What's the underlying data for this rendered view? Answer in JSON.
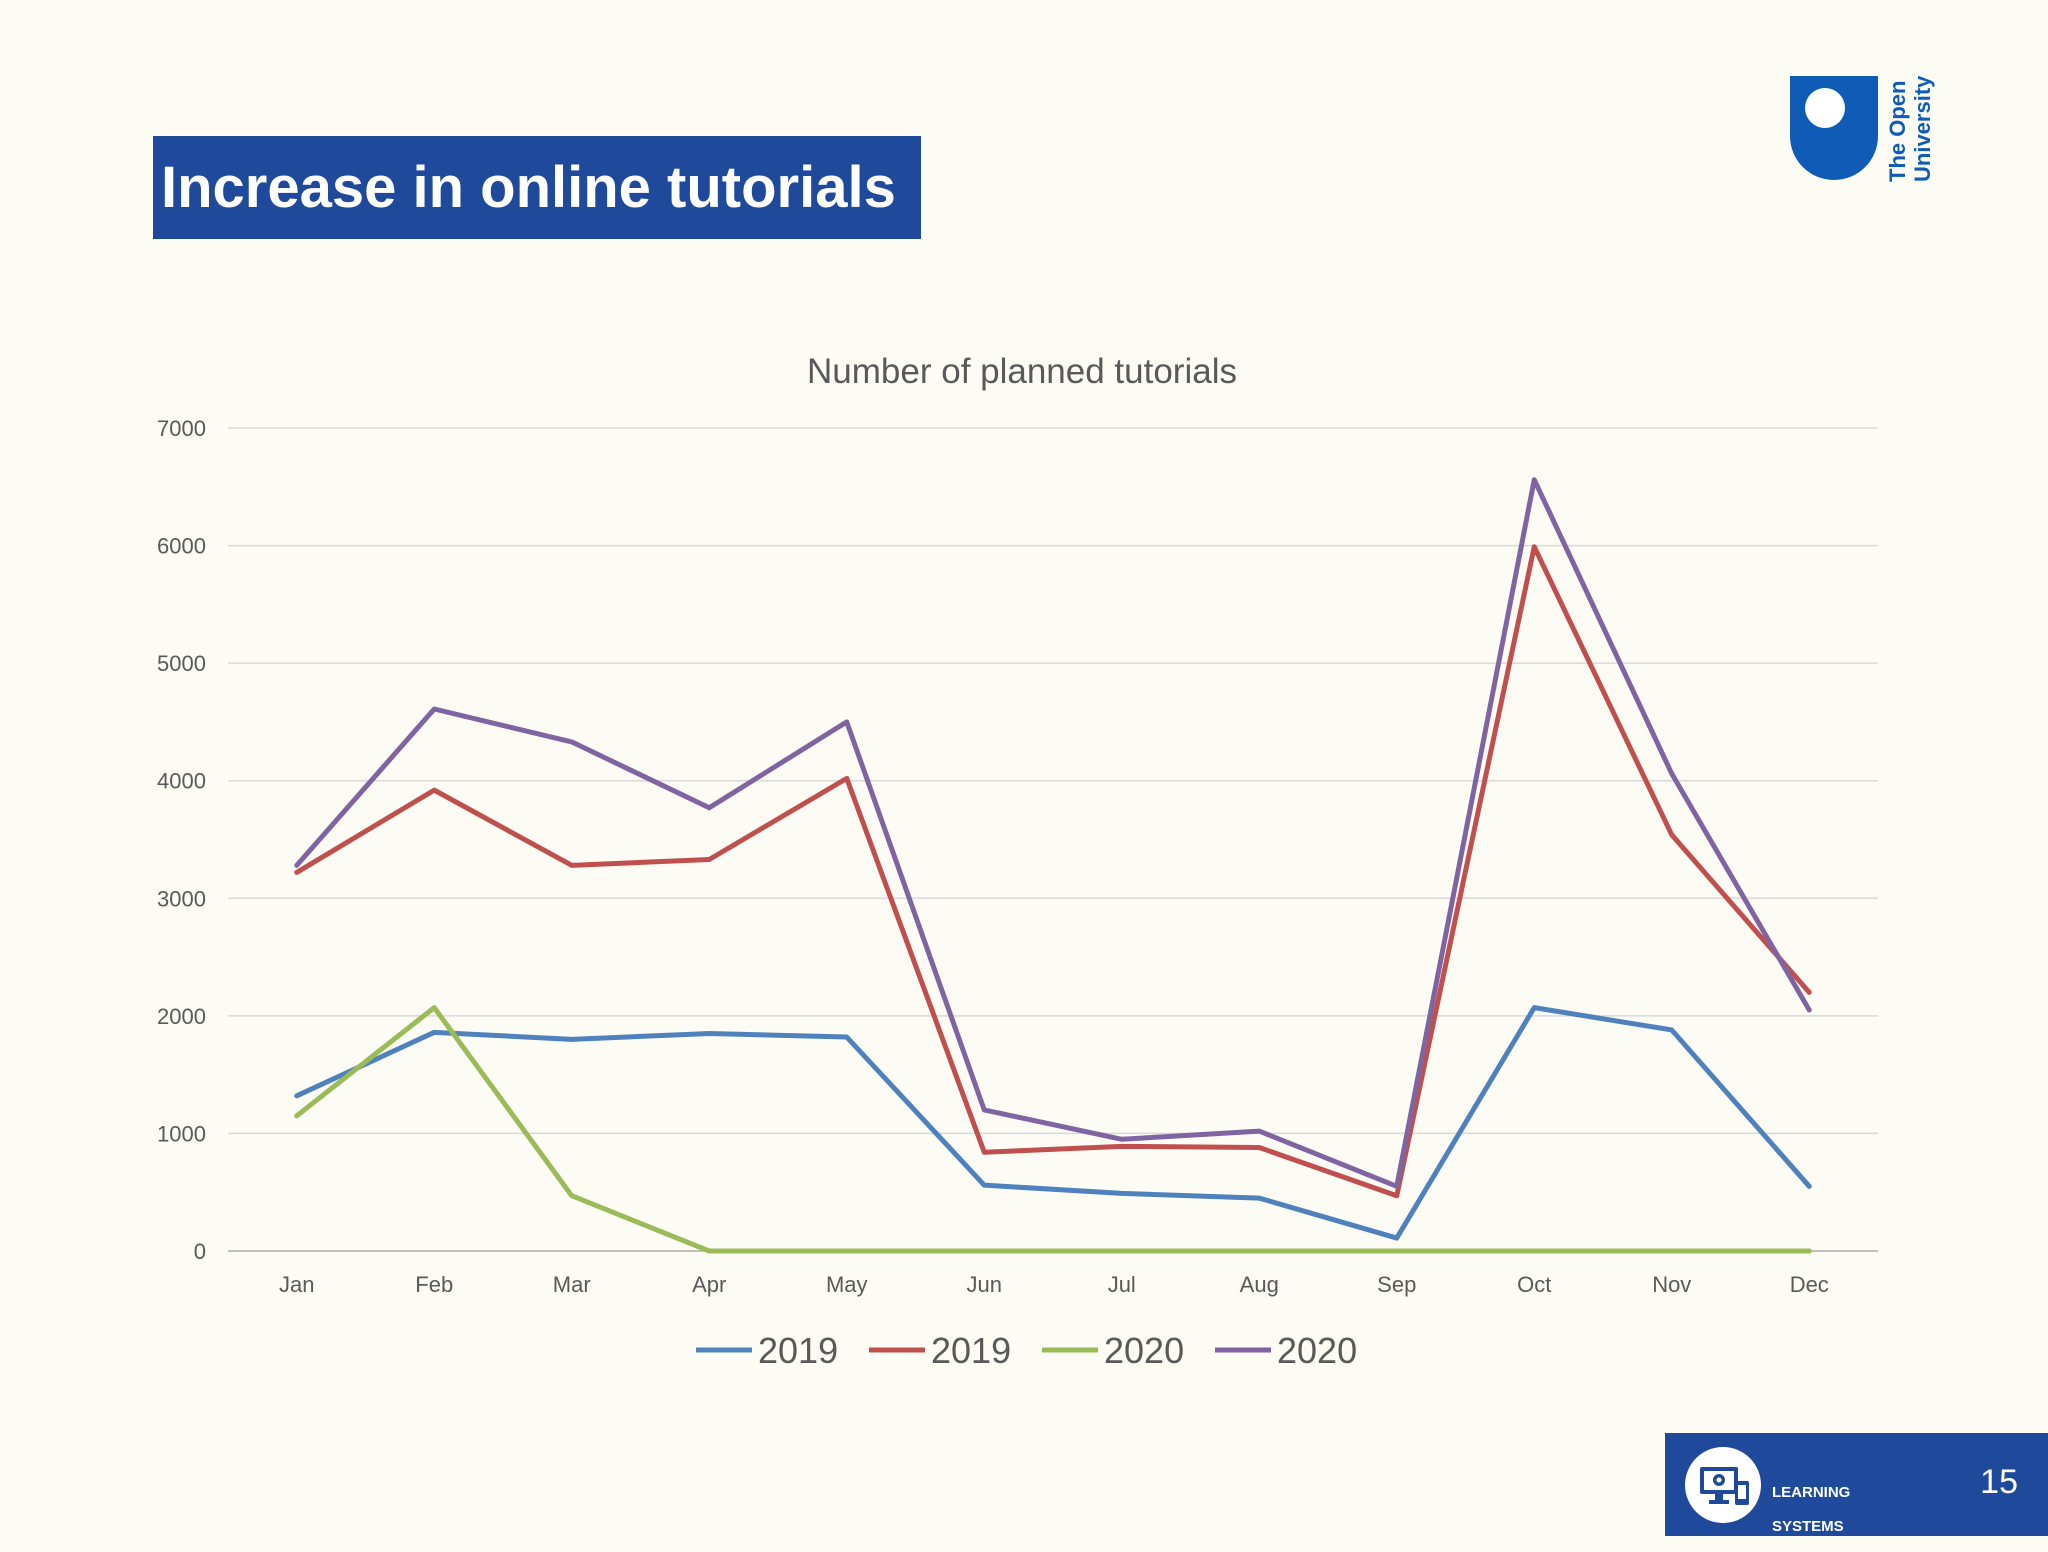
{
  "slide": {
    "title": "Increase in online tutorials",
    "page_number": "15",
    "logo_text_line1": "The Open",
    "logo_text_line2": "University",
    "footer_line1": "LEARNING",
    "footer_line2": "SYSTEMS"
  },
  "colors": {
    "title_bg": "#1f4a9c",
    "footer_bg": "#1f4a9c",
    "logo_blue": "#0f5bb5"
  },
  "icons": {
    "footer_logo": "computer-gear-icon"
  },
  "chart_data": {
    "type": "line",
    "title": "Number of planned tutorials",
    "xlabel": "",
    "ylabel": "",
    "categories": [
      "Jan",
      "Feb",
      "Mar",
      "Apr",
      "May",
      "Jun",
      "Jul",
      "Aug",
      "Sep",
      "Oct",
      "Nov",
      "Dec"
    ],
    "ylim": [
      0,
      7000
    ],
    "yticks": [
      0,
      1000,
      2000,
      3000,
      4000,
      5000,
      6000,
      7000
    ],
    "grid": true,
    "legend_position": "bottom",
    "series": [
      {
        "name": "2019",
        "color": "#4f81bd",
        "values": [
          1320,
          1860,
          1800,
          1850,
          1820,
          560,
          490,
          450,
          110,
          2070,
          1880,
          550
        ]
      },
      {
        "name": "2019",
        "color": "#c0504d",
        "values": [
          3220,
          3920,
          3280,
          3330,
          4020,
          840,
          890,
          880,
          470,
          5990,
          3540,
          2200
        ]
      },
      {
        "name": "2020",
        "color": "#9bbb59",
        "values": [
          1150,
          2070,
          470,
          0,
          0,
          0,
          0,
          0,
          0,
          0,
          0,
          0
        ]
      },
      {
        "name": "2020",
        "color": "#8064a2",
        "values": [
          3280,
          4610,
          4330,
          3770,
          4500,
          1200,
          950,
          1020,
          550,
          6560,
          4060,
          2050
        ]
      }
    ]
  }
}
